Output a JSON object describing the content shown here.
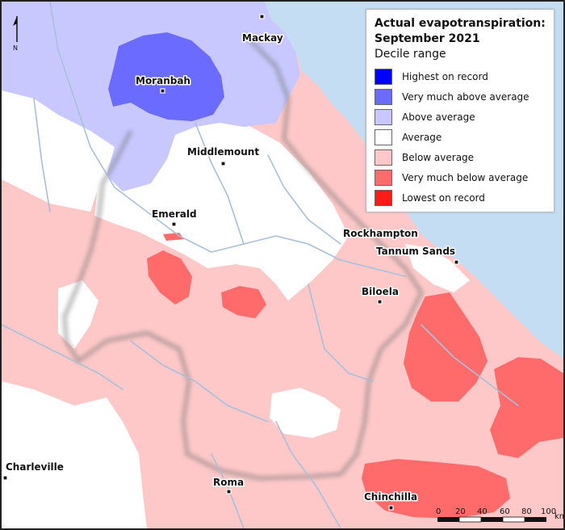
{
  "legend": {
    "title_line1": "Actual evapotranspiration:",
    "title_line2": "September 2021",
    "subtitle": "Decile range",
    "items": [
      {
        "label": "Highest on record",
        "color": "#0000ff"
      },
      {
        "label": "Very much above average",
        "color": "#6b6bff"
      },
      {
        "label": "Above average",
        "color": "#c8c8ff"
      },
      {
        "label": "Average",
        "color": "#ffffff"
      },
      {
        "label": "Below average",
        "color": "#ffc8c8"
      },
      {
        "label": "Very much below average",
        "color": "#ff6b6b"
      },
      {
        "label": "Lowest on record",
        "color": "#ff1a1a"
      }
    ]
  },
  "towns": [
    {
      "name": "Mackay"
    },
    {
      "name": "Moranbah"
    },
    {
      "name": "Middlemount"
    },
    {
      "name": "Emerald"
    },
    {
      "name": "Rockhampton"
    },
    {
      "name": "Tannum Sands"
    },
    {
      "name": "Biloela"
    },
    {
      "name": "Charleville"
    },
    {
      "name": "Roma"
    },
    {
      "name": "Chinchilla"
    }
  ],
  "scale": {
    "ticks": [
      "0",
      "20",
      "40",
      "60",
      "80",
      "100"
    ],
    "unit": "km"
  },
  "north_label": "N",
  "colors": {
    "ocean": "#c4ddf3",
    "river": "#a9bfd9"
  }
}
